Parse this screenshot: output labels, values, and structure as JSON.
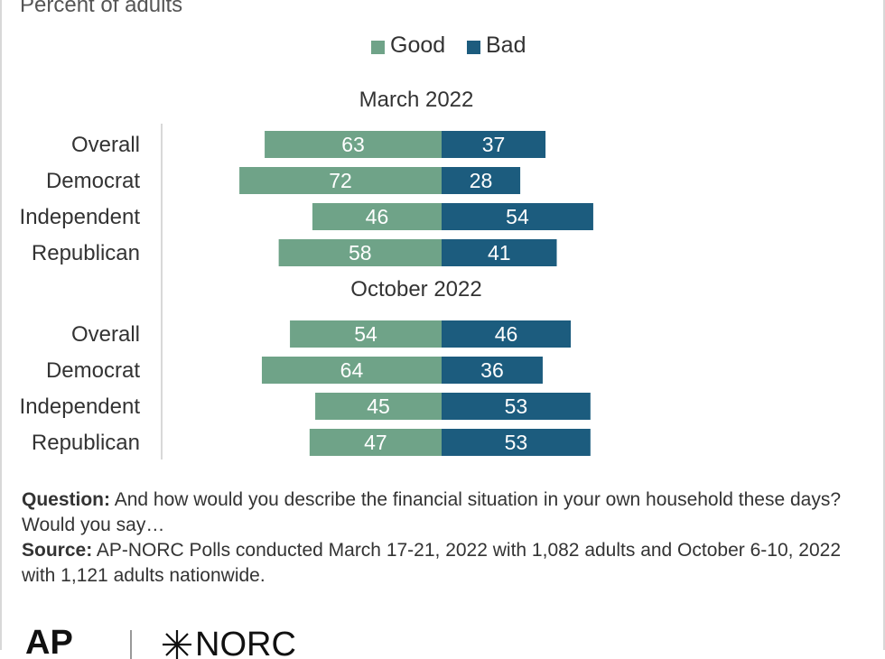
{
  "subtitle": "Percent of adults",
  "colors": {
    "good": "#6fa388",
    "bad": "#1c5c7e",
    "axis": "#cccccc",
    "label_on_bar": "#ffffff"
  },
  "chart_data": {
    "type": "bar",
    "orientation": "horizontal-diverging",
    "legend": [
      "Good",
      "Bad"
    ],
    "groups": [
      {
        "title": "March 2022",
        "categories": [
          "Overall",
          "Democrat",
          "Independent",
          "Republican"
        ],
        "series": [
          {
            "name": "Good",
            "values": [
              63,
              72,
              46,
              58
            ]
          },
          {
            "name": "Bad",
            "values": [
              37,
              28,
              54,
              41
            ]
          }
        ]
      },
      {
        "title": "October 2022",
        "categories": [
          "Overall",
          "Democrat",
          "Independent",
          "Republican"
        ],
        "series": [
          {
            "name": "Good",
            "values": [
              54,
              64,
              45,
              47
            ]
          },
          {
            "name": "Bad",
            "values": [
              46,
              36,
              53,
              53
            ]
          }
        ]
      }
    ]
  },
  "notes": {
    "question_label": "Question:",
    "question_text": "And how would you describe the financial situation in your own household these days? Would you say…",
    "source_label": "Source:",
    "source_text": "AP-NORC Polls conducted March 17-21, 2022 with 1,082 adults and October 6-10, 2022 with 1,121 adults nationwide."
  },
  "logos": {
    "ap": "AP",
    "norc": "NORC"
  }
}
